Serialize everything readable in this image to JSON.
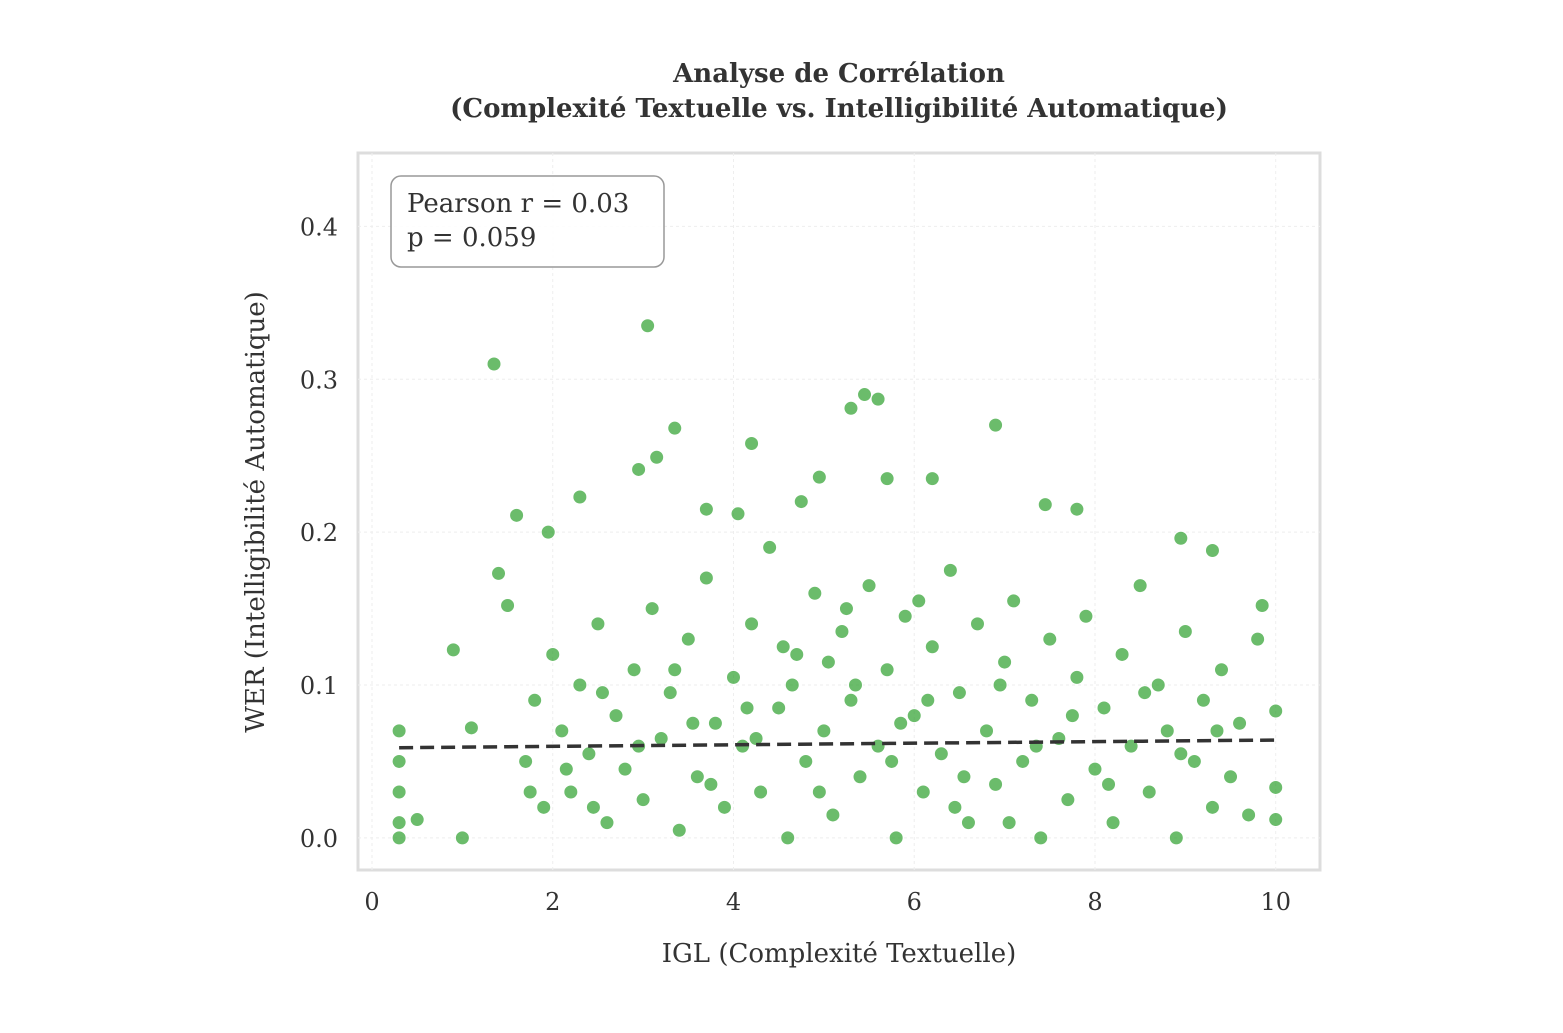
{
  "chart_data": {
    "type": "scatter",
    "title": [
      "Analyse de Corrélation",
      "(Complexité Textuelle vs. Intelligibilité Automatique)"
    ],
    "x_label": "IGL (Complexité Textuelle)",
    "y_label": "WER (Intelligibilité Automatique)",
    "annotation": [
      "Pearson r = 0.03",
      "p = 0.059"
    ],
    "xlim": [
      -0.155,
      10.49
    ],
    "ylim": [
      -0.021,
      0.448
    ],
    "xticks": [
      0,
      2,
      4,
      6,
      8,
      10
    ],
    "yticks": [
      {
        "value": 0,
        "label": "0.0"
      },
      0.1,
      0.2,
      0.3,
      0.4
    ],
    "grid": true,
    "series": [
      {
        "color": "#2ca02c",
        "x": [
          1.35,
          3.05,
          5.45,
          5.6,
          5.3,
          6.9,
          3.35,
          4.2,
          3.15,
          2.95,
          4.95,
          5.7,
          6.2,
          2.3,
          4.75,
          1.6,
          3.7,
          4.05,
          7.45,
          7.8,
          1.95,
          8.95,
          9.3,
          1.4,
          1.5,
          0.9,
          0.3,
          0.3,
          0.3,
          0.3,
          0.3,
          0.5,
          1.0,
          1.1,
          9.85,
          10,
          10,
          10,
          9.8,
          1.7,
          1.8,
          1.9,
          2.0,
          2.1,
          2.2,
          2.3,
          2.4,
          2.5,
          2.6,
          2.7,
          2.8,
          2.9,
          3.0,
          3.1,
          3.2,
          3.3,
          3.4,
          3.5,
          3.6,
          3.7,
          3.8,
          3.9,
          4.0,
          4.1,
          4.2,
          4.3,
          4.4,
          4.5,
          4.6,
          4.7,
          4.8,
          4.9,
          5.0,
          5.1,
          5.2,
          5.3,
          5.4,
          5.5,
          5.6,
          5.7,
          5.8,
          5.9,
          6.0,
          6.1,
          6.2,
          6.3,
          6.4,
          6.5,
          6.6,
          6.7,
          6.8,
          6.9,
          7.0,
          7.1,
          7.2,
          7.3,
          7.4,
          7.5,
          7.6,
          7.7,
          7.8,
          7.9,
          8.0,
          8.1,
          8.2,
          8.3,
          8.4,
          8.5,
          8.6,
          8.7,
          8.8,
          8.9,
          9.0,
          9.1,
          9.2,
          9.3,
          9.4,
          9.5,
          9.6,
          9.7,
          1.75,
          2.15,
          2.55,
          2.95,
          3.35,
          3.75,
          4.15,
          4.55,
          4.95,
          5.35,
          5.75,
          6.15,
          6.55,
          6.95,
          7.35,
          7.75,
          8.15,
          8.55,
          8.95,
          9.35,
          4.25,
          5.05,
          5.85,
          6.45,
          3.55,
          2.45,
          7.05,
          6.05,
          5.25,
          4.65
        ],
        "values": [
          0.31,
          0.335,
          0.29,
          0.287,
          0.281,
          0.27,
          0.268,
          0.258,
          0.249,
          0.241,
          0.236,
          0.235,
          0.235,
          0.223,
          0.22,
          0.211,
          0.215,
          0.212,
          0.218,
          0.215,
          0.2,
          0.196,
          0.188,
          0.173,
          0.152,
          0.123,
          0.07,
          0.05,
          0.03,
          0.01,
          0.0,
          0.012,
          0.0,
          0.072,
          0.152,
          0.083,
          0.033,
          0.012,
          0.13,
          0.05,
          0.09,
          0.02,
          0.12,
          0.07,
          0.03,
          0.1,
          0.055,
          0.14,
          0.01,
          0.08,
          0.045,
          0.11,
          0.025,
          0.15,
          0.065,
          0.095,
          0.005,
          0.13,
          0.04,
          0.17,
          0.075,
          0.02,
          0.105,
          0.06,
          0.14,
          0.03,
          0.19,
          0.085,
          0.0,
          0.12,
          0.05,
          0.16,
          0.07,
          0.015,
          0.135,
          0.09,
          0.04,
          0.165,
          0.06,
          0.11,
          0.0,
          0.145,
          0.08,
          0.03,
          0.125,
          0.055,
          0.175,
          0.095,
          0.01,
          0.14,
          0.07,
          0.035,
          0.115,
          0.155,
          0.05,
          0.09,
          0.0,
          0.13,
          0.065,
          0.025,
          0.105,
          0.145,
          0.045,
          0.085,
          0.01,
          0.12,
          0.06,
          0.165,
          0.03,
          0.1,
          0.07,
          0.0,
          0.135,
          0.05,
          0.09,
          0.02,
          0.11,
          0.04,
          0.075,
          0.015,
          0.03,
          0.045,
          0.095,
          0.06,
          0.11,
          0.035,
          0.085,
          0.125,
          0.03,
          0.1,
          0.05,
          0.09,
          0.04,
          0.1,
          0.06,
          0.08,
          0.035,
          0.095,
          0.055,
          0.07,
          0.065,
          0.115,
          0.075,
          0.02,
          0.075,
          0.02,
          0.01,
          0.155,
          0.15,
          0.1
        ]
      }
    ],
    "trend": {
      "color": "#333333",
      "x": [
        0.3,
        10
      ],
      "values": [
        0.059,
        0.064
      ]
    }
  }
}
